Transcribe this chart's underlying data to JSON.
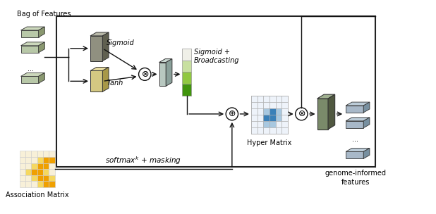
{
  "bg_color": "#ffffff",
  "text_bag_of_features": "Bag of Features",
  "text_association_matrix": "Association Matrix",
  "text_sigmoid": "Sigmoid",
  "text_tanh": "Tanh",
  "text_sigmoid_broadcasting": "Sigmoid +\nBroadcasting",
  "text_hyper_matrix": "Hyper Matrix",
  "text_genome_informed": "genome-informed\nfeatures",
  "text_softmax": "$softmax^k$ + masking",
  "feat_colors": [
    "#b8c8a8",
    "#c8d8b8",
    "#d0d8b8"
  ],
  "feat_top": "#d8e4c8",
  "feat_side": "#8a9a7a",
  "sigmoid_face": "#909080",
  "sigmoid_top": "#b8b8a8",
  "sigmoid_side": "#606050",
  "tanh_face": "#d4c882",
  "tanh_top": "#e8dca0",
  "tanh_side": "#a89848",
  "thin_face": "#b8c8c0",
  "thin_top": "#ccdad4",
  "thin_side": "#8aa09a",
  "out_face": "#7a8a6a",
  "out_top": "#a0b090",
  "out_side": "#505840",
  "out_feat_face": "#a8b8c8",
  "out_feat_top": "#bcccd8",
  "out_feat_side": "#7890a0",
  "green_col": [
    "#f0f0e8",
    "#c8e0a0",
    "#90c840",
    "#40940c"
  ],
  "hyper_pattern": [
    [
      0,
      0,
      0,
      0,
      0,
      0
    ],
    [
      0,
      0,
      0,
      0,
      0,
      0
    ],
    [
      0,
      0,
      1,
      2,
      1,
      0
    ],
    [
      0,
      0,
      2,
      2,
      1,
      0
    ],
    [
      0,
      0,
      1,
      1,
      0,
      0
    ],
    [
      0,
      0,
      0,
      0,
      0,
      0
    ]
  ],
  "assoc_pattern": [
    [
      0,
      0,
      0,
      0,
      0,
      0
    ],
    [
      0,
      0,
      0,
      1,
      2,
      2
    ],
    [
      0,
      0,
      1,
      2,
      2,
      0
    ],
    [
      0,
      1,
      2,
      2,
      1,
      0
    ],
    [
      0,
      0,
      1,
      2,
      2,
      1
    ],
    [
      0,
      0,
      0,
      1,
      2,
      2
    ]
  ]
}
